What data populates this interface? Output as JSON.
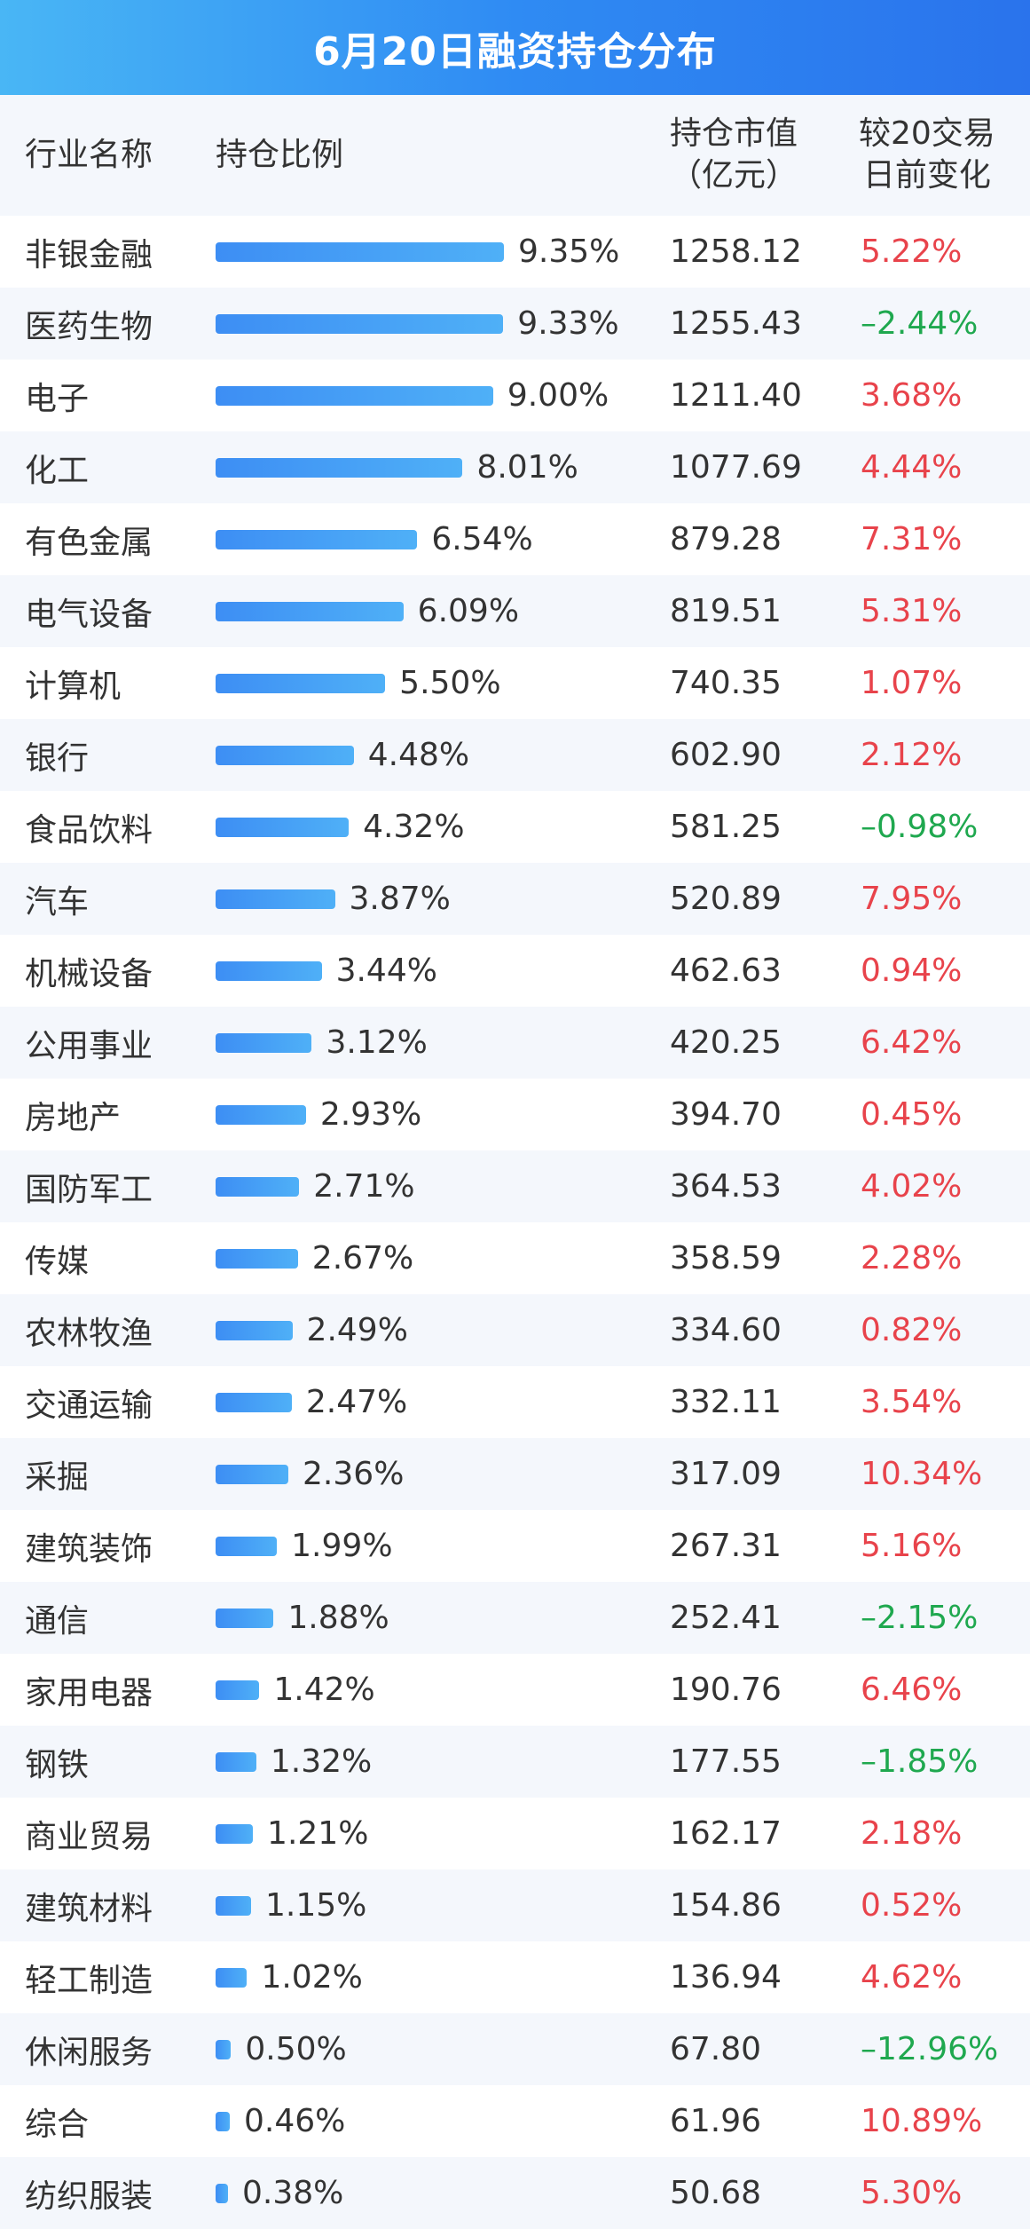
{
  "title": "6月20日融资持仓分布",
  "headers": {
    "name": "行业名称",
    "ratio": "持仓比例",
    "value": "持仓市值\n（亿元）",
    "change": "较20交易\n日前变化"
  },
  "colors": {
    "bar_start": "#3d8ef4",
    "bar_end": "#4fb0f7",
    "positive": "#e8434b",
    "negative": "#1fa84f",
    "title_bg": "#2f8bf3",
    "alt_row": "#f4f7fc"
  },
  "chart_data": {
    "type": "bar",
    "orientation": "horizontal",
    "title": "6月20日融资持仓分布",
    "xlim": [
      0,
      9.35
    ],
    "grid": false,
    "rows": [
      {
        "name": "非银金融",
        "ratio": 9.35,
        "ratio_label": "9.35%",
        "value": "1258.12",
        "change": 5.22,
        "change_label": "5.22%"
      },
      {
        "name": "医药生物",
        "ratio": 9.33,
        "ratio_label": "9.33%",
        "value": "1255.43",
        "change": -2.44,
        "change_label": "–2.44%"
      },
      {
        "name": "电子",
        "ratio": 9.0,
        "ratio_label": "9.00%",
        "value": "1211.40",
        "change": 3.68,
        "change_label": "3.68%"
      },
      {
        "name": "化工",
        "ratio": 8.01,
        "ratio_label": "8.01%",
        "value": "1077.69",
        "change": 4.44,
        "change_label": "4.44%"
      },
      {
        "name": "有色金属",
        "ratio": 6.54,
        "ratio_label": "6.54%",
        "value": "879.28",
        "change": 7.31,
        "change_label": "7.31%"
      },
      {
        "name": "电气设备",
        "ratio": 6.09,
        "ratio_label": "6.09%",
        "value": "819.51",
        "change": 5.31,
        "change_label": "5.31%"
      },
      {
        "name": "计算机",
        "ratio": 5.5,
        "ratio_label": "5.50%",
        "value": "740.35",
        "change": 1.07,
        "change_label": "1.07%"
      },
      {
        "name": "银行",
        "ratio": 4.48,
        "ratio_label": "4.48%",
        "value": "602.90",
        "change": 2.12,
        "change_label": "2.12%"
      },
      {
        "name": "食品饮料",
        "ratio": 4.32,
        "ratio_label": "4.32%",
        "value": "581.25",
        "change": -0.98,
        "change_label": "–0.98%"
      },
      {
        "name": "汽车",
        "ratio": 3.87,
        "ratio_label": "3.87%",
        "value": "520.89",
        "change": 7.95,
        "change_label": "7.95%"
      },
      {
        "name": "机械设备",
        "ratio": 3.44,
        "ratio_label": "3.44%",
        "value": "462.63",
        "change": 0.94,
        "change_label": "0.94%"
      },
      {
        "name": "公用事业",
        "ratio": 3.12,
        "ratio_label": "3.12%",
        "value": "420.25",
        "change": 6.42,
        "change_label": "6.42%"
      },
      {
        "name": "房地产",
        "ratio": 2.93,
        "ratio_label": "2.93%",
        "value": "394.70",
        "change": 0.45,
        "change_label": "0.45%"
      },
      {
        "name": "国防军工",
        "ratio": 2.71,
        "ratio_label": "2.71%",
        "value": "364.53",
        "change": 4.02,
        "change_label": "4.02%"
      },
      {
        "name": "传媒",
        "ratio": 2.67,
        "ratio_label": "2.67%",
        "value": "358.59",
        "change": 2.28,
        "change_label": "2.28%"
      },
      {
        "name": "农林牧渔",
        "ratio": 2.49,
        "ratio_label": "2.49%",
        "value": "334.60",
        "change": 0.82,
        "change_label": "0.82%"
      },
      {
        "name": "交通运输",
        "ratio": 2.47,
        "ratio_label": "2.47%",
        "value": "332.11",
        "change": 3.54,
        "change_label": "3.54%"
      },
      {
        "name": "采掘",
        "ratio": 2.36,
        "ratio_label": "2.36%",
        "value": "317.09",
        "change": 10.34,
        "change_label": "10.34%"
      },
      {
        "name": "建筑装饰",
        "ratio": 1.99,
        "ratio_label": "1.99%",
        "value": "267.31",
        "change": 5.16,
        "change_label": "5.16%"
      },
      {
        "name": "通信",
        "ratio": 1.88,
        "ratio_label": "1.88%",
        "value": "252.41",
        "change": -2.15,
        "change_label": "–2.15%"
      },
      {
        "name": "家用电器",
        "ratio": 1.42,
        "ratio_label": "1.42%",
        "value": "190.76",
        "change": 6.46,
        "change_label": "6.46%"
      },
      {
        "name": "钢铁",
        "ratio": 1.32,
        "ratio_label": "1.32%",
        "value": "177.55",
        "change": -1.85,
        "change_label": "–1.85%"
      },
      {
        "name": "商业贸易",
        "ratio": 1.21,
        "ratio_label": "1.21%",
        "value": "162.17",
        "change": 2.18,
        "change_label": "2.18%"
      },
      {
        "name": "建筑材料",
        "ratio": 1.15,
        "ratio_label": "1.15%",
        "value": "154.86",
        "change": 0.52,
        "change_label": "0.52%"
      },
      {
        "name": "轻工制造",
        "ratio": 1.02,
        "ratio_label": "1.02%",
        "value": "136.94",
        "change": 4.62,
        "change_label": "4.62%"
      },
      {
        "name": "休闲服务",
        "ratio": 0.5,
        "ratio_label": "0.50%",
        "value": "67.80",
        "change": -12.96,
        "change_label": "–12.96%"
      },
      {
        "name": "综合",
        "ratio": 0.46,
        "ratio_label": "0.46%",
        "value": "61.96",
        "change": 10.89,
        "change_label": "10.89%"
      },
      {
        "name": "纺织服装",
        "ratio": 0.38,
        "ratio_label": "0.38%",
        "value": "50.68",
        "change": 5.3,
        "change_label": "5.30%"
      }
    ]
  }
}
